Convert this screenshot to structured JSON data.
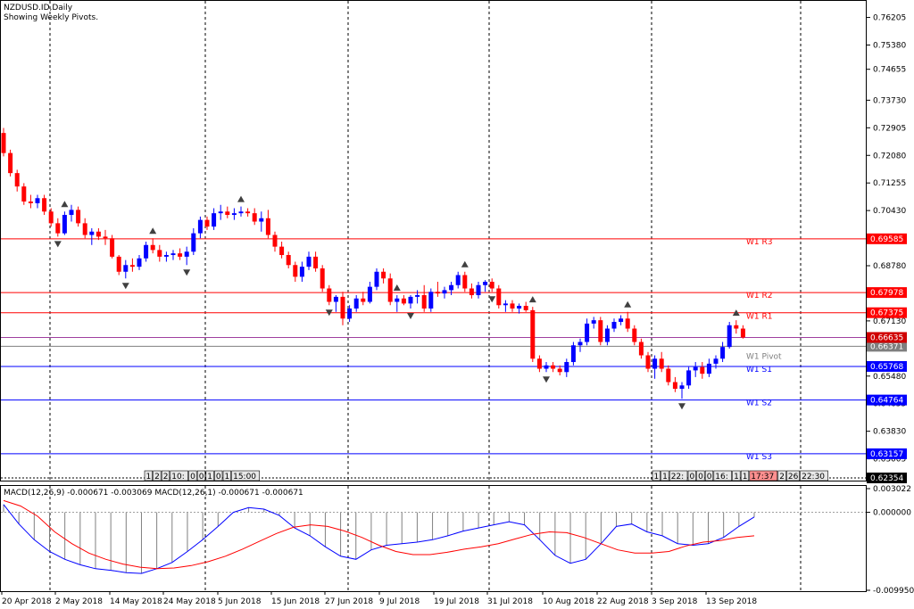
{
  "header": {
    "symbol_line": "NZDUSD.ID,Daily",
    "subtitle": "Showing Weekly Pivots."
  },
  "colors": {
    "bull": "#0000ff",
    "bear": "#ff0000",
    "resistance": "#ff0000",
    "support": "#0000ff",
    "pivot": "#7f7f7f",
    "macd_main": "#0000ff",
    "macd_signal": "#ff0000",
    "histogram": "#808080",
    "grid": "#000000"
  },
  "chart_data": [
    {
      "type": "candlestick",
      "title": "NZDUSD.ID,Daily",
      "subtitle": "Showing Weekly Pivots.",
      "x_labels": [
        "20 Apr 2018",
        "2 May 2018",
        "14 May 2018",
        "24 May 2018",
        "5 Jun 2018",
        "15 Jun 2018",
        "27 Jun 2018",
        "9 Jul 2018",
        "19 Jul 2018",
        "31 Jul 2018",
        "10 Aug 2018",
        "22 Aug 2018",
        "3 Sep 2018",
        "13 Sep 2018"
      ],
      "y_ticks": [
        "0.76205",
        "0.75380",
        "0.74655",
        "0.73730",
        "0.72905",
        "0.72080",
        "0.71255",
        "0.70430",
        "0.69605",
        "0.68780",
        "0.67955",
        "0.67130",
        "0.66305",
        "0.65480",
        "0.64655",
        "0.63830",
        "0.63005",
        "0.62354"
      ],
      "ylim": [
        0.62354,
        0.767
      ],
      "grid": true,
      "pivots": [
        {
          "label": "W1 R3",
          "value": 0.69585,
          "tag": "0.69585",
          "kind": "resistance"
        },
        {
          "label": "W1 R2",
          "value": 0.67978,
          "tag": "0.67978",
          "kind": "resistance"
        },
        {
          "label": "W1 R1",
          "value": 0.67375,
          "tag": "0.67375",
          "kind": "resistance"
        },
        {
          "label": "W1 Pivot",
          "value": 0.66371,
          "tag": "0.66371",
          "kind": "pivot"
        },
        {
          "label": "W1 S1",
          "value": 0.65768,
          "tag": "0.65768",
          "kind": "support"
        },
        {
          "label": "W1 S2",
          "value": 0.64764,
          "tag": "0.64764",
          "kind": "support"
        },
        {
          "label": "W1 S3",
          "value": 0.63157,
          "tag": "0.63157",
          "kind": "support"
        }
      ],
      "current_price": {
        "value": 0.66635,
        "tag": "0.66635"
      },
      "bottom_tag": "0.62354",
      "candles": [
        {
          "o": 0.7275,
          "h": 0.729,
          "l": 0.7205,
          "c": 0.7215
        },
        {
          "o": 0.7215,
          "h": 0.7225,
          "l": 0.7145,
          "c": 0.7155
        },
        {
          "o": 0.7155,
          "h": 0.7165,
          "l": 0.71,
          "c": 0.7115
        },
        {
          "o": 0.7115,
          "h": 0.7125,
          "l": 0.706,
          "c": 0.707
        },
        {
          "o": 0.707,
          "h": 0.709,
          "l": 0.705,
          "c": 0.7065
        },
        {
          "o": 0.7065,
          "h": 0.709,
          "l": 0.705,
          "c": 0.708
        },
        {
          "o": 0.708,
          "h": 0.709,
          "l": 0.703,
          "c": 0.704
        },
        {
          "o": 0.704,
          "h": 0.705,
          "l": 0.6995,
          "c": 0.7005
        },
        {
          "o": 0.7005,
          "h": 0.702,
          "l": 0.6965,
          "c": 0.6975
        },
        {
          "o": 0.6975,
          "h": 0.704,
          "l": 0.697,
          "c": 0.703
        },
        {
          "o": 0.703,
          "h": 0.706,
          "l": 0.701,
          "c": 0.7045
        },
        {
          "o": 0.7045,
          "h": 0.7055,
          "l": 0.6995,
          "c": 0.7005
        },
        {
          "o": 0.7005,
          "h": 0.702,
          "l": 0.696,
          "c": 0.697
        },
        {
          "o": 0.697,
          "h": 0.699,
          "l": 0.694,
          "c": 0.698
        },
        {
          "o": 0.698,
          "h": 0.699,
          "l": 0.6955,
          "c": 0.6965
        },
        {
          "o": 0.6965,
          "h": 0.6985,
          "l": 0.694,
          "c": 0.696
        },
        {
          "o": 0.696,
          "h": 0.697,
          "l": 0.69,
          "c": 0.6905
        },
        {
          "o": 0.6905,
          "h": 0.691,
          "l": 0.685,
          "c": 0.686
        },
        {
          "o": 0.686,
          "h": 0.6895,
          "l": 0.684,
          "c": 0.688
        },
        {
          "o": 0.688,
          "h": 0.69,
          "l": 0.686,
          "c": 0.6875
        },
        {
          "o": 0.6875,
          "h": 0.691,
          "l": 0.6865,
          "c": 0.69
        },
        {
          "o": 0.69,
          "h": 0.695,
          "l": 0.689,
          "c": 0.694
        },
        {
          "o": 0.694,
          "h": 0.696,
          "l": 0.6915,
          "c": 0.6925
        },
        {
          "o": 0.6925,
          "h": 0.694,
          "l": 0.689,
          "c": 0.6905
        },
        {
          "o": 0.6905,
          "h": 0.692,
          "l": 0.689,
          "c": 0.691
        },
        {
          "o": 0.691,
          "h": 0.6925,
          "l": 0.6895,
          "c": 0.6915
        },
        {
          "o": 0.6915,
          "h": 0.693,
          "l": 0.6895,
          "c": 0.6905
        },
        {
          "o": 0.6905,
          "h": 0.6935,
          "l": 0.688,
          "c": 0.692
        },
        {
          "o": 0.692,
          "h": 0.699,
          "l": 0.691,
          "c": 0.6975
        },
        {
          "o": 0.6975,
          "h": 0.7025,
          "l": 0.696,
          "c": 0.7015
        },
        {
          "o": 0.7015,
          "h": 0.7025,
          "l": 0.6985,
          "c": 0.6995
        },
        {
          "o": 0.6995,
          "h": 0.705,
          "l": 0.6985,
          "c": 0.7035
        },
        {
          "o": 0.7035,
          "h": 0.706,
          "l": 0.7015,
          "c": 0.704
        },
        {
          "o": 0.704,
          "h": 0.7055,
          "l": 0.702,
          "c": 0.703
        },
        {
          "o": 0.703,
          "h": 0.705,
          "l": 0.7015,
          "c": 0.7035
        },
        {
          "o": 0.7035,
          "h": 0.7055,
          "l": 0.7025,
          "c": 0.704
        },
        {
          "o": 0.704,
          "h": 0.705,
          "l": 0.7025,
          "c": 0.7035
        },
        {
          "o": 0.7035,
          "h": 0.705,
          "l": 0.7,
          "c": 0.701
        },
        {
          "o": 0.701,
          "h": 0.704,
          "l": 0.698,
          "c": 0.702
        },
        {
          "o": 0.702,
          "h": 0.7045,
          "l": 0.696,
          "c": 0.697
        },
        {
          "o": 0.697,
          "h": 0.698,
          "l": 0.692,
          "c": 0.6935
        },
        {
          "o": 0.6935,
          "h": 0.695,
          "l": 0.69,
          "c": 0.691
        },
        {
          "o": 0.691,
          "h": 0.692,
          "l": 0.687,
          "c": 0.688
        },
        {
          "o": 0.688,
          "h": 0.689,
          "l": 0.683,
          "c": 0.6845
        },
        {
          "o": 0.6845,
          "h": 0.689,
          "l": 0.683,
          "c": 0.6875
        },
        {
          "o": 0.6875,
          "h": 0.692,
          "l": 0.6865,
          "c": 0.6905
        },
        {
          "o": 0.6905,
          "h": 0.692,
          "l": 0.686,
          "c": 0.687
        },
        {
          "o": 0.687,
          "h": 0.688,
          "l": 0.68,
          "c": 0.681
        },
        {
          "o": 0.681,
          "h": 0.682,
          "l": 0.676,
          "c": 0.677
        },
        {
          "o": 0.677,
          "h": 0.679,
          "l": 0.674,
          "c": 0.6785
        },
        {
          "o": 0.6785,
          "h": 0.68,
          "l": 0.67,
          "c": 0.672
        },
        {
          "o": 0.672,
          "h": 0.676,
          "l": 0.671,
          "c": 0.675
        },
        {
          "o": 0.675,
          "h": 0.679,
          "l": 0.674,
          "c": 0.678
        },
        {
          "o": 0.678,
          "h": 0.68,
          "l": 0.676,
          "c": 0.677
        },
        {
          "o": 0.677,
          "h": 0.683,
          "l": 0.6765,
          "c": 0.6815
        },
        {
          "o": 0.6815,
          "h": 0.687,
          "l": 0.6805,
          "c": 0.686
        },
        {
          "o": 0.686,
          "h": 0.687,
          "l": 0.6825,
          "c": 0.684
        },
        {
          "o": 0.684,
          "h": 0.6855,
          "l": 0.676,
          "c": 0.677
        },
        {
          "o": 0.677,
          "h": 0.679,
          "l": 0.674,
          "c": 0.678
        },
        {
          "o": 0.678,
          "h": 0.679,
          "l": 0.676,
          "c": 0.6765
        },
        {
          "o": 0.6765,
          "h": 0.679,
          "l": 0.675,
          "c": 0.6785
        },
        {
          "o": 0.6785,
          "h": 0.6805,
          "l": 0.6765,
          "c": 0.679
        },
        {
          "o": 0.679,
          "h": 0.682,
          "l": 0.674,
          "c": 0.675
        },
        {
          "o": 0.675,
          "h": 0.681,
          "l": 0.674,
          "c": 0.68
        },
        {
          "o": 0.68,
          "h": 0.683,
          "l": 0.6785,
          "c": 0.6795
        },
        {
          "o": 0.6795,
          "h": 0.6815,
          "l": 0.678,
          "c": 0.6805
        },
        {
          "o": 0.6805,
          "h": 0.683,
          "l": 0.679,
          "c": 0.682
        },
        {
          "o": 0.682,
          "h": 0.686,
          "l": 0.681,
          "c": 0.685
        },
        {
          "o": 0.685,
          "h": 0.686,
          "l": 0.68,
          "c": 0.681
        },
        {
          "o": 0.681,
          "h": 0.6825,
          "l": 0.678,
          "c": 0.679
        },
        {
          "o": 0.679,
          "h": 0.683,
          "l": 0.678,
          "c": 0.682
        },
        {
          "o": 0.682,
          "h": 0.6835,
          "l": 0.68,
          "c": 0.683
        },
        {
          "o": 0.683,
          "h": 0.684,
          "l": 0.68,
          "c": 0.681
        },
        {
          "o": 0.681,
          "h": 0.682,
          "l": 0.675,
          "c": 0.676
        },
        {
          "o": 0.676,
          "h": 0.6775,
          "l": 0.674,
          "c": 0.6765
        },
        {
          "o": 0.6765,
          "h": 0.6775,
          "l": 0.674,
          "c": 0.675
        },
        {
          "o": 0.675,
          "h": 0.6765,
          "l": 0.6735,
          "c": 0.6758
        },
        {
          "o": 0.6758,
          "h": 0.677,
          "l": 0.674,
          "c": 0.6745
        },
        {
          "o": 0.6745,
          "h": 0.6755,
          "l": 0.659,
          "c": 0.66
        },
        {
          "o": 0.66,
          "h": 0.661,
          "l": 0.656,
          "c": 0.657
        },
        {
          "o": 0.657,
          "h": 0.659,
          "l": 0.656,
          "c": 0.658
        },
        {
          "o": 0.658,
          "h": 0.659,
          "l": 0.656,
          "c": 0.657
        },
        {
          "o": 0.657,
          "h": 0.658,
          "l": 0.655,
          "c": 0.656
        },
        {
          "o": 0.656,
          "h": 0.66,
          "l": 0.6545,
          "c": 0.659
        },
        {
          "o": 0.659,
          "h": 0.665,
          "l": 0.658,
          "c": 0.664
        },
        {
          "o": 0.664,
          "h": 0.666,
          "l": 0.662,
          "c": 0.665
        },
        {
          "o": 0.665,
          "h": 0.672,
          "l": 0.664,
          "c": 0.6705
        },
        {
          "o": 0.6705,
          "h": 0.6725,
          "l": 0.669,
          "c": 0.6715
        },
        {
          "o": 0.6715,
          "h": 0.6725,
          "l": 0.664,
          "c": 0.665
        },
        {
          "o": 0.665,
          "h": 0.67,
          "l": 0.664,
          "c": 0.669
        },
        {
          "o": 0.669,
          "h": 0.672,
          "l": 0.668,
          "c": 0.671
        },
        {
          "o": 0.671,
          "h": 0.673,
          "l": 0.67,
          "c": 0.672
        },
        {
          "o": 0.672,
          "h": 0.674,
          "l": 0.668,
          "c": 0.669
        },
        {
          "o": 0.669,
          "h": 0.67,
          "l": 0.664,
          "c": 0.665
        },
        {
          "o": 0.665,
          "h": 0.666,
          "l": 0.66,
          "c": 0.661
        },
        {
          "o": 0.661,
          "h": 0.662,
          "l": 0.656,
          "c": 0.657
        },
        {
          "o": 0.657,
          "h": 0.661,
          "l": 0.654,
          "c": 0.66
        },
        {
          "o": 0.66,
          "h": 0.662,
          "l": 0.656,
          "c": 0.657
        },
        {
          "o": 0.657,
          "h": 0.658,
          "l": 0.652,
          "c": 0.653
        },
        {
          "o": 0.653,
          "h": 0.6545,
          "l": 0.65,
          "c": 0.651
        },
        {
          "o": 0.651,
          "h": 0.653,
          "l": 0.648,
          "c": 0.652
        },
        {
          "o": 0.652,
          "h": 0.6575,
          "l": 0.651,
          "c": 0.6565
        },
        {
          "o": 0.6565,
          "h": 0.659,
          "l": 0.6545,
          "c": 0.6575
        },
        {
          "o": 0.6575,
          "h": 0.659,
          "l": 0.654,
          "c": 0.6555
        },
        {
          "o": 0.6555,
          "h": 0.66,
          "l": 0.6545,
          "c": 0.6585
        },
        {
          "o": 0.6585,
          "h": 0.661,
          "l": 0.657,
          "c": 0.66
        },
        {
          "o": 0.66,
          "h": 0.665,
          "l": 0.659,
          "c": 0.6635
        },
        {
          "o": 0.6635,
          "h": 0.671,
          "l": 0.663,
          "c": 0.67
        },
        {
          "o": 0.67,
          "h": 0.6715,
          "l": 0.6675,
          "c": 0.669
        },
        {
          "o": 0.669,
          "h": 0.67,
          "l": 0.666,
          "c": 0.66635
        }
      ],
      "fractals_up": [
        9,
        22,
        35,
        58,
        68,
        78,
        92,
        108
      ],
      "fractals_down": [
        8,
        18,
        27,
        48,
        60,
        72,
        80,
        100
      ],
      "time_markers_left": [
        "1",
        "2",
        "2",
        "10:",
        "0",
        "0",
        "1",
        "0",
        "1",
        "15:00"
      ],
      "time_markers_right": [
        "1",
        "1",
        "22:",
        "0",
        "0",
        "0",
        "16:",
        "1",
        "1",
        "17:37",
        "2",
        "26",
        "22:30"
      ]
    },
    {
      "type": "line",
      "title": "MACD(12,26,9) -0.000671 -0.003069 MACD(12,26,1) -0.000671 -0.000671",
      "y_ticks": [
        "0.003022",
        "0.000000",
        "-0.009950"
      ],
      "ylim": [
        -0.00995,
        0.003022
      ],
      "series": [
        {
          "name": "MACD(12,26,9)",
          "kind": "signal",
          "values": [
            0.0015,
            0.0008,
            -0.0005,
            -0.0025,
            -0.004,
            -0.0052,
            -0.006,
            -0.0066,
            -0.007,
            -0.0072,
            -0.0071,
            -0.0068,
            -0.0063,
            -0.0056,
            -0.0047,
            -0.0037,
            -0.0027,
            -0.0019,
            -0.0016,
            -0.0018,
            -0.0024,
            -0.0032,
            -0.0042,
            -0.005,
            -0.0054,
            -0.0054,
            -0.0051,
            -0.0047,
            -0.0044,
            -0.004,
            -0.0034,
            -0.0028,
            -0.0025,
            -0.0026,
            -0.0032,
            -0.004,
            -0.0048,
            -0.0052,
            -0.0052,
            -0.005,
            -0.0043,
            -0.0038,
            -0.0036,
            -0.0032,
            -0.003
          ]
        },
        {
          "name": "MACD(12,26,1)",
          "kind": "main",
          "values": [
            0.001,
            -0.0015,
            -0.0035,
            -0.005,
            -0.006,
            -0.0067,
            -0.0072,
            -0.0074,
            -0.0077,
            -0.0078,
            -0.0072,
            -0.0064,
            -0.005,
            -0.0035,
            -0.0018,
            0.0,
            0.0006,
            0.0004,
            -0.0004,
            -0.002,
            -0.003,
            -0.0044,
            -0.0056,
            -0.006,
            -0.0048,
            -0.0042,
            -0.004,
            -0.0038,
            -0.0035,
            -0.003,
            -0.0024,
            -0.002,
            -0.0016,
            -0.0012,
            -0.0016,
            -0.0035,
            -0.0055,
            -0.0065,
            -0.006,
            -0.004,
            -0.0018,
            -0.0015,
            -0.0025,
            -0.003,
            -0.004,
            -0.0042,
            -0.004,
            -0.0032,
            -0.0018,
            -0.0006
          ]
        }
      ]
    }
  ]
}
